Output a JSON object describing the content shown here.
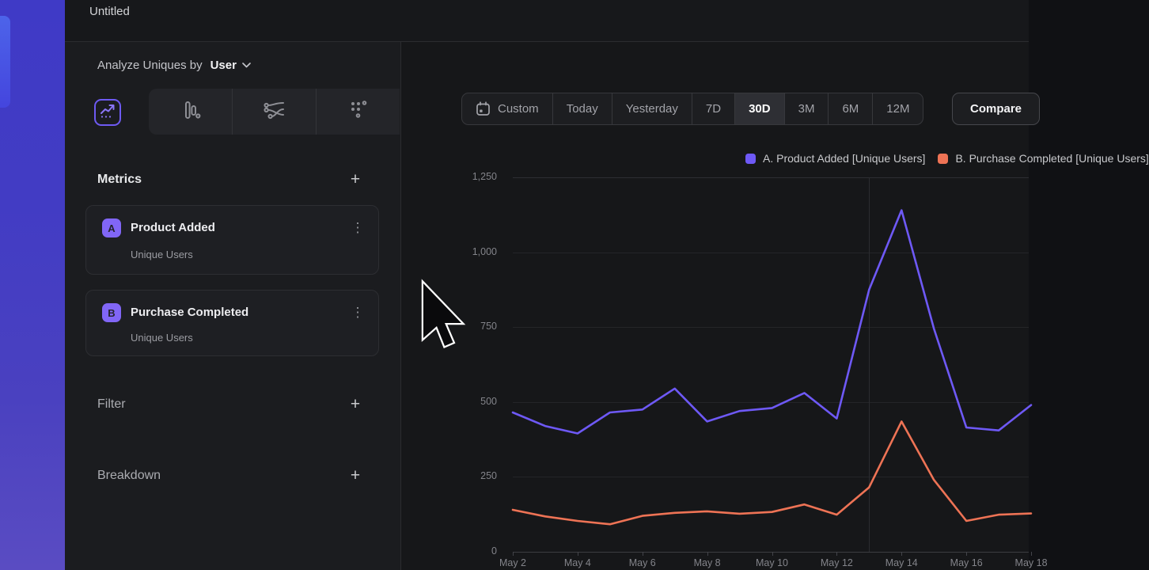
{
  "window": {
    "title": "Untitled"
  },
  "icons": {
    "plus": "+",
    "kebab": "⋮"
  },
  "sidebar": {
    "analyze": {
      "label": "Analyze Uniques by",
      "value": "User"
    },
    "chart_type_tabs": [
      "line-chart",
      "bar-chart",
      "flow",
      "metric-grid"
    ],
    "selected_tab": "line-chart",
    "metrics": {
      "title": "Metrics",
      "items": [
        {
          "badge": "A",
          "name": "Product Added",
          "subtitle": "Unique Users"
        },
        {
          "badge": "B",
          "name": "Purchase Completed",
          "subtitle": "Unique Users"
        }
      ]
    },
    "filter": {
      "title": "Filter"
    },
    "breakdown": {
      "title": "Breakdown"
    }
  },
  "toolbar": {
    "ranges": [
      "Custom",
      "Today",
      "Yesterday",
      "7D",
      "30D",
      "3M",
      "6M",
      "12M"
    ],
    "selected_range": "30D",
    "compare_label": "Compare"
  },
  "colors": {
    "accent": "#6e5af2",
    "series_a": "#6e59f6",
    "series_b": "#ee7355",
    "badge": "#8166f6"
  },
  "chart_data": {
    "type": "line",
    "x": [
      "May 2",
      "May 3",
      "May 4",
      "May 5",
      "May 6",
      "May 7",
      "May 8",
      "May 9",
      "May 10",
      "May 11",
      "May 12",
      "May 13",
      "May 14",
      "May 15",
      "May 16",
      "May 17",
      "May 18"
    ],
    "x_tick_labels": [
      "May 2",
      "May 4",
      "May 6",
      "May 8",
      "May 10",
      "May 12",
      "May 14",
      "May 16",
      "May 18"
    ],
    "y_ticks": [
      {
        "value": 0,
        "label": "0"
      },
      {
        "value": 250,
        "label": "250"
      },
      {
        "value": 500,
        "label": "500"
      },
      {
        "value": 750,
        "label": "750"
      },
      {
        "value": 1000,
        "label": "1,000"
      },
      {
        "value": 1250,
        "label": "1,250"
      }
    ],
    "ylim": [
      0,
      1250
    ],
    "grid": "horizontal",
    "vertical_gridline_x": "May 13",
    "legend_position": "top-right",
    "series": [
      {
        "name": "A. Product Added [Unique Users]",
        "color": "#6e59f6",
        "values": [
          465,
          420,
          395,
          465,
          475,
          545,
          435,
          470,
          480,
          530,
          445,
          875,
          1140,
          745,
          415,
          405,
          490
        ]
      },
      {
        "name": "B. Purchase Completed [Unique Users]",
        "color": "#ee7355",
        "values": [
          140,
          118,
          103,
          92,
          120,
          130,
          135,
          127,
          133,
          158,
          124,
          215,
          435,
          240,
          103,
          124,
          128
        ]
      }
    ]
  }
}
